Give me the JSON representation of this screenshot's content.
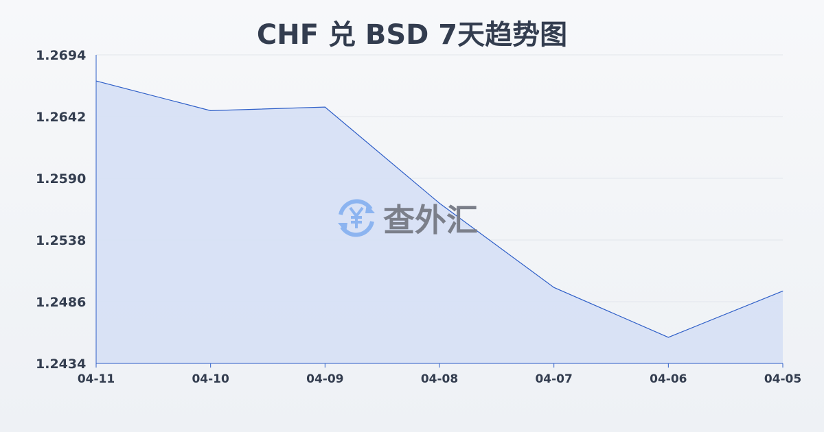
{
  "chart_data": {
    "type": "area",
    "title": "CHF 兑 BSD 7天趋势图",
    "categories": [
      "04-11",
      "04-10",
      "04-09",
      "04-08",
      "04-07",
      "04-06",
      "04-05"
    ],
    "series": [
      {
        "values": [
          1.2672,
          1.2647,
          1.265,
          1.2569,
          1.2498,
          1.2456,
          1.2495
        ]
      }
    ],
    "ylim": [
      1.2434,
      1.2694
    ],
    "yticks": [
      "1.2694",
      "1.2642",
      "1.2590",
      "1.2538",
      "1.2486",
      "1.2434"
    ],
    "grid": true,
    "colors": {
      "line": "#2f5fc8",
      "fill": "#d6e0f5"
    }
  },
  "watermark": {
    "text": "查外汇",
    "icon": "yen-exchange-icon"
  }
}
